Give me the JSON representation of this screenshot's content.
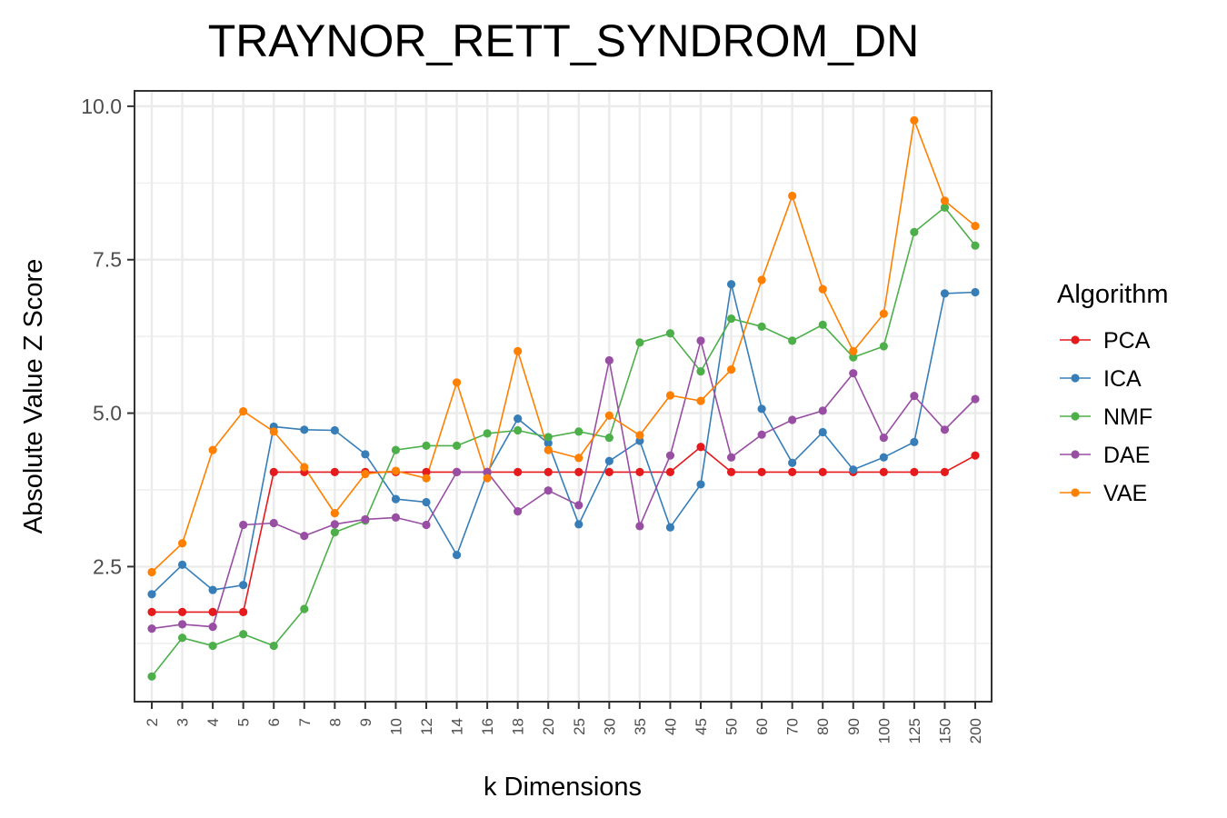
{
  "chart_data": {
    "type": "line",
    "title": "TRAYNOR_RETT_SYNDROM_DN",
    "xlabel": "k Dimensions",
    "ylabel": "Absolute Value Z Score",
    "categories": [
      "2",
      "3",
      "4",
      "5",
      "6",
      "7",
      "8",
      "9",
      "10",
      "12",
      "14",
      "16",
      "18",
      "20",
      "25",
      "30",
      "35",
      "40",
      "45",
      "50",
      "60",
      "70",
      "80",
      "90",
      "100",
      "125",
      "150",
      "200"
    ],
    "ylim": [
      0.3,
      10.25
    ],
    "yticks": [
      2.5,
      5.0,
      7.5,
      10.0
    ],
    "ytick_labels": [
      "2.5",
      "5.0",
      "7.5",
      "10.0"
    ],
    "grid": true,
    "legend": {
      "title": "Algorithm",
      "position": "right"
    },
    "series": [
      {
        "name": "PCA",
        "color": "#e41a1c",
        "values": [
          1.76,
          1.76,
          1.76,
          1.76,
          4.04,
          4.04,
          4.04,
          4.04,
          4.04,
          4.04,
          4.04,
          4.04,
          4.04,
          4.04,
          4.04,
          4.04,
          4.04,
          4.04,
          4.45,
          4.04,
          4.04,
          4.04,
          4.04,
          4.04,
          4.04,
          4.04,
          4.04,
          4.31
        ]
      },
      {
        "name": "ICA",
        "color": "#377eb8",
        "values": [
          2.05,
          2.53,
          2.12,
          2.2,
          4.78,
          4.73,
          4.72,
          4.33,
          3.6,
          3.55,
          2.69,
          4.03,
          4.91,
          4.51,
          3.19,
          4.22,
          4.55,
          3.14,
          3.84,
          7.1,
          5.07,
          4.19,
          4.69,
          4.08,
          4.28,
          4.53,
          6.95,
          6.97
        ]
      },
      {
        "name": "NMF",
        "color": "#4daf4a",
        "values": [
          0.71,
          1.34,
          1.21,
          1.4,
          1.21,
          1.81,
          3.06,
          3.25,
          4.4,
          4.47,
          4.47,
          4.67,
          4.72,
          4.61,
          4.7,
          4.6,
          6.15,
          6.3,
          5.68,
          6.54,
          6.41,
          6.18,
          6.44,
          5.91,
          6.09,
          7.95,
          8.35,
          7.73
        ]
      },
      {
        "name": "DAE",
        "color": "#984ea3",
        "values": [
          1.49,
          1.56,
          1.52,
          3.18,
          3.21,
          3.0,
          3.19,
          3.27,
          3.3,
          3.18,
          4.04,
          4.04,
          3.4,
          3.74,
          3.5,
          5.86,
          3.16,
          4.31,
          6.18,
          4.28,
          4.65,
          4.89,
          5.04,
          5.65,
          4.6,
          5.28,
          4.73,
          5.23
        ]
      },
      {
        "name": "VAE",
        "color": "#ff7f00",
        "values": [
          2.41,
          2.88,
          4.4,
          5.03,
          4.7,
          4.12,
          3.37,
          4.01,
          4.06,
          3.94,
          5.5,
          3.94,
          6.01,
          4.4,
          4.27,
          4.96,
          4.64,
          5.29,
          5.2,
          5.71,
          7.17,
          8.54,
          7.02,
          6.01,
          6.62,
          9.77,
          8.46,
          8.05
        ]
      }
    ]
  }
}
